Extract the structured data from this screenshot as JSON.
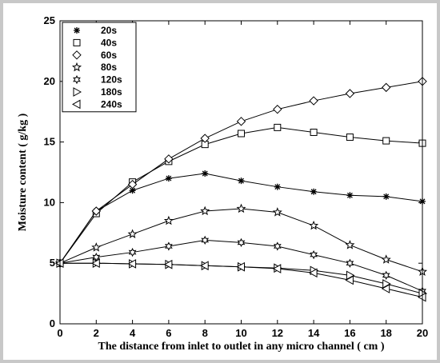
{
  "chart_data": {
    "type": "line",
    "title": "",
    "xlabel": "The distance from inlet to outlet in any micro channel ( cm )",
    "ylabel": "Moisture content ( g/kg )",
    "xlim": [
      0,
      20
    ],
    "ylim": [
      0,
      25
    ],
    "xticks": [
      0,
      2,
      4,
      6,
      8,
      10,
      12,
      14,
      16,
      18,
      20
    ],
    "yticks": [
      0,
      5,
      10,
      15,
      20,
      25
    ],
    "grid": false,
    "legend_position": "top-left",
    "x": [
      0,
      2,
      4,
      6,
      8,
      10,
      12,
      14,
      16,
      18,
      20
    ],
    "series": [
      {
        "name": "20s",
        "marker": "asterisk",
        "values": [
          5,
          9.3,
          11.0,
          12.0,
          12.4,
          11.8,
          11.3,
          10.9,
          10.6,
          10.5,
          10.1
        ]
      },
      {
        "name": "40s",
        "marker": "square",
        "values": [
          5,
          9.1,
          11.7,
          13.4,
          14.8,
          15.7,
          16.2,
          15.8,
          15.4,
          15.1,
          14.9
        ]
      },
      {
        "name": "60s",
        "marker": "diamond",
        "values": [
          5,
          9.3,
          11.5,
          13.6,
          15.3,
          16.7,
          17.7,
          18.4,
          19.0,
          19.5,
          20.0
        ]
      },
      {
        "name": "80s",
        "marker": "pentagram",
        "values": [
          5,
          6.3,
          7.4,
          8.5,
          9.3,
          9.5,
          9.2,
          8.1,
          6.5,
          5.3,
          4.3
        ]
      },
      {
        "name": "120s",
        "marker": "hexagram",
        "values": [
          5,
          5.5,
          5.9,
          6.4,
          6.9,
          6.7,
          6.4,
          5.7,
          5.0,
          4.0,
          2.7
        ]
      },
      {
        "name": "180s",
        "marker": "triangle-right",
        "values": [
          5,
          5.0,
          4.95,
          4.9,
          4.8,
          4.7,
          4.6,
          4.4,
          4.0,
          3.3,
          2.5
        ]
      },
      {
        "name": "240s",
        "marker": "triangle-left",
        "values": [
          5,
          5.0,
          4.95,
          4.9,
          4.8,
          4.7,
          4.55,
          4.2,
          3.6,
          2.9,
          2.2
        ]
      }
    ],
    "colors": {
      "line": "#000000",
      "frame_bg": "#c8c8c8",
      "plot_bg": "#ffffff"
    }
  }
}
